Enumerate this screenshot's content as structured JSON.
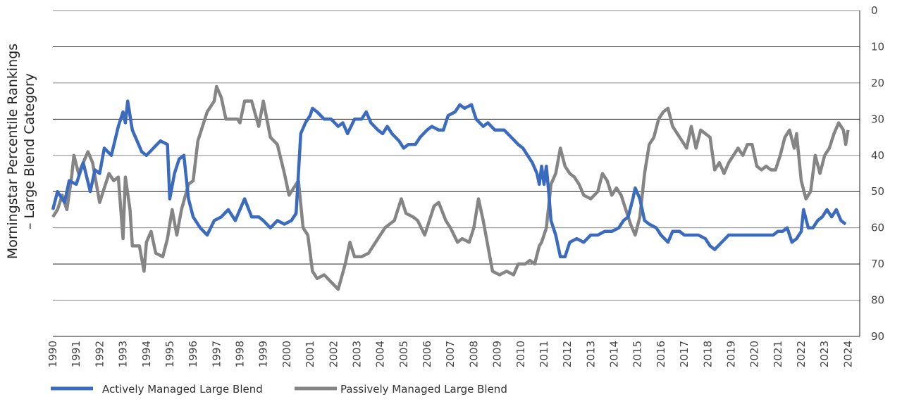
{
  "chart_data": {
    "type": "line",
    "title": "",
    "ylabel_lines": [
      "Morningstar Percentile Rankings",
      "– Large Blend Category"
    ],
    "xlabel": "",
    "xlim": [
      1990,
      2024.5
    ],
    "ylim": [
      0,
      90
    ],
    "y_axis_side": "right",
    "y_reversed": true,
    "grid": "horizontal",
    "legend_position": "bottom-left",
    "xticks": [
      "1990",
      "1991",
      "1992",
      "1993",
      "1994",
      "1995",
      "1996",
      "1997",
      "1998",
      "1999",
      "2000",
      "2001",
      "2002",
      "2003",
      "2004",
      "2005",
      "2006",
      "2007",
      "2008",
      "2009",
      "2010",
      "2011",
      "2012",
      "2013",
      "2014",
      "2015",
      "2016",
      "2017",
      "2018",
      "2019",
      "2020",
      "2021",
      "2022",
      "2023",
      "2024"
    ],
    "yticks": [
      0,
      10,
      20,
      30,
      40,
      50,
      60,
      70,
      80,
      90
    ],
    "series": [
      {
        "name": "Actively Managed Large Blend",
        "color": "#3a6bbf",
        "x": [
          1990.0,
          1990.2,
          1990.5,
          1990.7,
          1991.0,
          1991.3,
          1991.6,
          1991.8,
          1992.0,
          1992.2,
          1992.5,
          1992.8,
          1993.0,
          1993.1,
          1993.2,
          1993.4,
          1993.6,
          1993.8,
          1994.0,
          1994.3,
          1994.6,
          1994.9,
          1995.0,
          1995.2,
          1995.4,
          1995.6,
          1995.8,
          1996.0,
          1996.3,
          1996.6,
          1996.9,
          1997.2,
          1997.5,
          1997.8,
          1998.0,
          1998.2,
          1998.5,
          1998.8,
          1999.0,
          1999.3,
          1999.6,
          1999.9,
          2000.2,
          2000.4,
          2000.5,
          2000.6,
          2000.8,
          2001.0,
          2001.1,
          2001.3,
          2001.6,
          2001.9,
          2002.2,
          2002.4,
          2002.6,
          2002.9,
          2003.2,
          2003.4,
          2003.6,
          2003.9,
          2004.1,
          2004.3,
          2004.5,
          2004.8,
          2005.0,
          2005.2,
          2005.5,
          2005.7,
          2006.0,
          2006.2,
          2006.5,
          2006.7,
          2006.9,
          2007.2,
          2007.4,
          2007.6,
          2007.9,
          2008.1,
          2008.4,
          2008.6,
          2008.9,
          2009.1,
          2009.3,
          2009.6,
          2009.9,
          2010.1,
          2010.3,
          2010.5,
          2010.7,
          2010.8,
          2010.9,
          2011.0,
          2011.1,
          2011.2,
          2011.3,
          2011.5,
          2011.7,
          2011.9,
          2012.1,
          2012.4,
          2012.7,
          2013.0,
          2013.3,
          2013.6,
          2013.9,
          2014.2,
          2014.4,
          2014.6,
          2014.8,
          2014.9,
          2015.1,
          2015.3,
          2015.5,
          2015.8,
          2016.0,
          2016.3,
          2016.5,
          2016.8,
          2017.0,
          2017.3,
          2017.6,
          2017.9,
          2018.1,
          2018.3,
          2018.6,
          2018.9,
          2019.1,
          2019.4,
          2019.7,
          2019.9,
          2020.2,
          2020.5,
          2020.8,
          2021.0,
          2021.2,
          2021.4,
          2021.6,
          2021.8,
          2022.0,
          2022.1,
          2022.3,
          2022.5,
          2022.7,
          2022.9,
          2023.1,
          2023.3,
          2023.5,
          2023.7,
          2023.9
        ],
        "values": [
          55,
          50,
          53,
          47,
          48,
          42,
          50,
          44,
          45,
          38,
          40,
          32,
          28,
          31,
          25,
          33,
          36,
          39,
          40,
          38,
          36,
          37,
          52,
          45,
          41,
          40,
          52,
          57,
          60,
          62,
          58,
          57,
          55,
          58,
          55,
          52,
          57,
          57,
          58,
          60,
          58,
          59,
          58,
          56,
          45,
          34,
          31,
          29,
          27,
          28,
          30,
          30,
          32,
          31,
          34,
          30,
          30,
          28,
          31,
          33,
          34,
          32,
          34,
          36,
          38,
          37,
          37,
          35,
          33,
          32,
          33,
          33,
          29,
          28,
          26,
          27,
          26,
          30,
          32,
          31,
          33,
          33,
          33,
          35,
          37,
          38,
          40,
          42,
          45,
          48,
          43,
          48,
          43,
          50,
          58,
          62,
          68,
          68,
          64,
          63,
          64,
          62,
          62,
          61,
          61,
          60,
          58,
          57,
          52,
          49,
          52,
          58,
          59,
          60,
          62,
          64,
          61,
          61,
          62,
          62,
          62,
          63,
          65,
          66,
          64,
          62,
          62,
          62,
          62,
          62,
          62,
          62,
          62,
          61,
          61,
          60,
          64,
          63,
          61,
          55,
          60,
          60,
          58,
          57,
          55,
          57,
          55,
          58,
          59
        ]
      },
      {
        "name": "Passively Managed Large Blend",
        "color": "#858585",
        "x": [
          1990.0,
          1990.2,
          1990.4,
          1990.6,
          1990.8,
          1990.9,
          1991.1,
          1991.3,
          1991.5,
          1991.7,
          1992.0,
          1992.2,
          1992.4,
          1992.6,
          1992.8,
          1993.0,
          1993.1,
          1993.3,
          1993.4,
          1993.7,
          1993.9,
          1994.0,
          1994.2,
          1994.4,
          1994.7,
          1994.9,
          1995.1,
          1995.3,
          1995.5,
          1995.8,
          1996.0,
          1996.2,
          1996.4,
          1996.6,
          1996.9,
          1997.0,
          1997.2,
          1997.4,
          1997.7,
          1997.9,
          1998.0,
          1998.2,
          1998.5,
          1998.8,
          1999.0,
          1999.3,
          1999.6,
          1999.9,
          2000.1,
          2000.3,
          2000.5,
          2000.7,
          2000.9,
          2001.1,
          2001.3,
          2001.6,
          2001.9,
          2002.2,
          2002.5,
          2002.7,
          2002.9,
          2003.2,
          2003.5,
          2003.7,
          2003.9,
          2004.2,
          2004.4,
          2004.6,
          2004.9,
          2005.1,
          2005.4,
          2005.6,
          2005.9,
          2006.1,
          2006.3,
          2006.5,
          2006.8,
          2007.0,
          2007.3,
          2007.5,
          2007.8,
          2008.0,
          2008.2,
          2008.4,
          2008.6,
          2008.8,
          2009.1,
          2009.4,
          2009.7,
          2009.9,
          2010.2,
          2010.4,
          2010.6,
          2010.8,
          2010.9,
          2011.0,
          2011.1,
          2011.3,
          2011.5,
          2011.7,
          2011.9,
          2012.1,
          2012.3,
          2012.5,
          2012.7,
          2013.0,
          2013.3,
          2013.5,
          2013.7,
          2013.9,
          2014.1,
          2014.3,
          2014.5,
          2014.7,
          2014.9,
          2015.1,
          2015.3,
          2015.5,
          2015.7,
          2015.9,
          2016.1,
          2016.3,
          2016.5,
          2016.7,
          2016.9,
          2017.1,
          2017.3,
          2017.5,
          2017.7,
          2017.9,
          2018.1,
          2018.3,
          2018.5,
          2018.7,
          2018.9,
          2019.1,
          2019.3,
          2019.5,
          2019.7,
          2019.9,
          2020.1,
          2020.3,
          2020.5,
          2020.7,
          2020.9,
          2021.1,
          2021.3,
          2021.5,
          2021.7,
          2021.8,
          2022.0,
          2022.2,
          2022.4,
          2022.6,
          2022.8,
          2023.0,
          2023.2,
          2023.4,
          2023.6,
          2023.8,
          2023.9,
          2024.0
        ],
        "values": [
          57,
          55,
          51,
          55,
          46,
          40,
          45,
          42,
          39,
          42,
          53,
          49,
          45,
          47,
          46,
          63,
          46,
          55,
          65,
          65,
          72,
          64,
          61,
          67,
          68,
          63,
          55,
          62,
          55,
          48,
          47,
          36,
          32,
          28,
          25,
          21,
          24,
          30,
          30,
          30,
          31,
          25,
          25,
          32,
          25,
          35,
          37,
          45,
          51,
          49,
          47,
          60,
          62,
          72,
          74,
          73,
          75,
          77,
          70,
          64,
          68,
          68,
          67,
          65,
          63,
          60,
          59,
          58,
          52,
          56,
          57,
          58,
          62,
          58,
          54,
          53,
          58,
          60,
          64,
          63,
          64,
          60,
          52,
          58,
          65,
          72,
          73,
          72,
          73,
          70,
          70,
          69,
          70,
          65,
          64,
          62,
          60,
          48,
          45,
          38,
          43,
          45,
          46,
          48,
          51,
          52,
          50,
          45,
          47,
          51,
          49,
          51,
          55,
          59,
          62,
          57,
          45,
          37,
          35,
          30,
          28,
          27,
          32,
          34,
          36,
          38,
          32,
          38,
          33,
          34,
          35,
          44,
          42,
          45,
          42,
          40,
          38,
          40,
          37,
          37,
          43,
          44,
          43,
          44,
          44,
          40,
          35,
          33,
          38,
          34,
          47,
          52,
          50,
          40,
          45,
          40,
          38,
          34,
          31,
          33,
          37,
          33
        ]
      }
    ]
  }
}
